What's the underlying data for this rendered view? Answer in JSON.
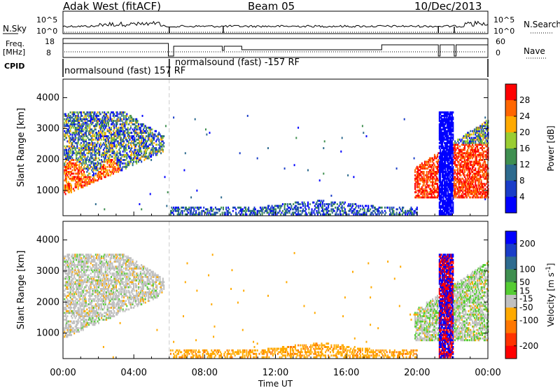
{
  "header": {
    "station": "Adak West (fitACF)",
    "beam": "Beam 05",
    "date": "10/Dec/2013"
  },
  "left_labels": {
    "nsky": "N.Sky",
    "nsky_ticks": [
      "10^5",
      "10^0"
    ],
    "freq_line1": "Freq.",
    "freq_line2": "[MHz]",
    "freq_ticks": [
      "18",
      "8"
    ],
    "cpid": "CPID"
  },
  "right_labels": {
    "nsearch": "N.Search",
    "nsearch_ticks": [
      "10^5",
      "10^0"
    ],
    "nave": "Nave",
    "nave_ticks": [
      "60",
      "0"
    ]
  },
  "cpid_segments": [
    {
      "text": "normalsound (fast) 157 RF",
      "start": "00:00",
      "end": "06:00"
    },
    {
      "text": "normalsound (fast) -157 RF",
      "start": "06:00",
      "end": "24:00"
    }
  ],
  "colors": {
    "power": [
      "#0000ff",
      "#1a3dc8",
      "#2e6b8f",
      "#3f8f50",
      "#9acd32",
      "#ffaa00",
      "#ff6600",
      "#ff0000"
    ],
    "velocity": [
      "#0000ff",
      "#1a3dc8",
      "#2e6b8f",
      "#3f8f50",
      "#55cc33",
      "#c0c0c0",
      "#ffaa00",
      "#ff7700",
      "#ff3300",
      "#ff0000"
    ]
  },
  "chart_data": [
    {
      "type": "heatmap",
      "title": "Power",
      "xlabel": "",
      "ylabel": "Slant Range [km]",
      "xlim": [
        "00:00",
        "24:00"
      ],
      "ylim": [
        180,
        4600
      ],
      "yticks": [
        1000,
        2000,
        3000,
        4000
      ],
      "colorbar": {
        "label": "Power [dB]",
        "ticks": [
          4,
          8,
          12,
          16,
          20,
          24,
          28
        ],
        "range": [
          0,
          32
        ]
      },
      "regions": [
        {
          "name": "early-dense",
          "t_start": 0.0,
          "t_end": 5.7,
          "r_min": 700,
          "r_max": 3500,
          "values": "4-32"
        },
        {
          "name": "low-range-band",
          "t_start": 6.0,
          "t_end": 20.0,
          "r_min": 200,
          "r_max": 700,
          "values": "4-12"
        },
        {
          "name": "late-dense",
          "t_start": 19.8,
          "t_end": 24.0,
          "r_min": 700,
          "r_max": 3500,
          "values": "4-32"
        },
        {
          "name": "interference",
          "t_start": 21.2,
          "t_end": 22.0,
          "r_min": 200,
          "r_max": 3550,
          "values": "4"
        }
      ]
    },
    {
      "type": "heatmap",
      "title": "Velocity",
      "xlabel": "Time UT",
      "ylabel": "Slant Range [km]",
      "xlim": [
        "00:00",
        "24:00"
      ],
      "xticks": [
        "00:00",
        "04:00",
        "08:00",
        "12:00",
        "16:00",
        "20:00",
        "00:00"
      ],
      "ylim": [
        180,
        4600
      ],
      "yticks": [
        1000,
        2000,
        3000,
        4000
      ],
      "colorbar": {
        "label": "Velocity [m s^-1]",
        "ticks": [
          200,
          100,
          50,
          15,
          -15,
          -50,
          -100,
          -200
        ],
        "range": [
          -250,
          250
        ]
      },
      "regions": [
        {
          "name": "early-ground",
          "t_start": 0.0,
          "t_end": 5.7,
          "r_min": 700,
          "r_max": 3500,
          "values": "-15 to 15"
        },
        {
          "name": "low-range-band",
          "t_start": 6.0,
          "t_end": 20.0,
          "r_min": 200,
          "r_max": 700,
          "values": "-50 to -15"
        },
        {
          "name": "late-ground",
          "t_start": 19.8,
          "t_end": 24.0,
          "r_min": 700,
          "r_max": 3500,
          "values": "-15 to 50"
        },
        {
          "name": "interference",
          "t_start": 21.2,
          "t_end": 22.0,
          "r_min": 200,
          "r_max": 3550,
          "values": "-200 to 200"
        }
      ]
    }
  ]
}
